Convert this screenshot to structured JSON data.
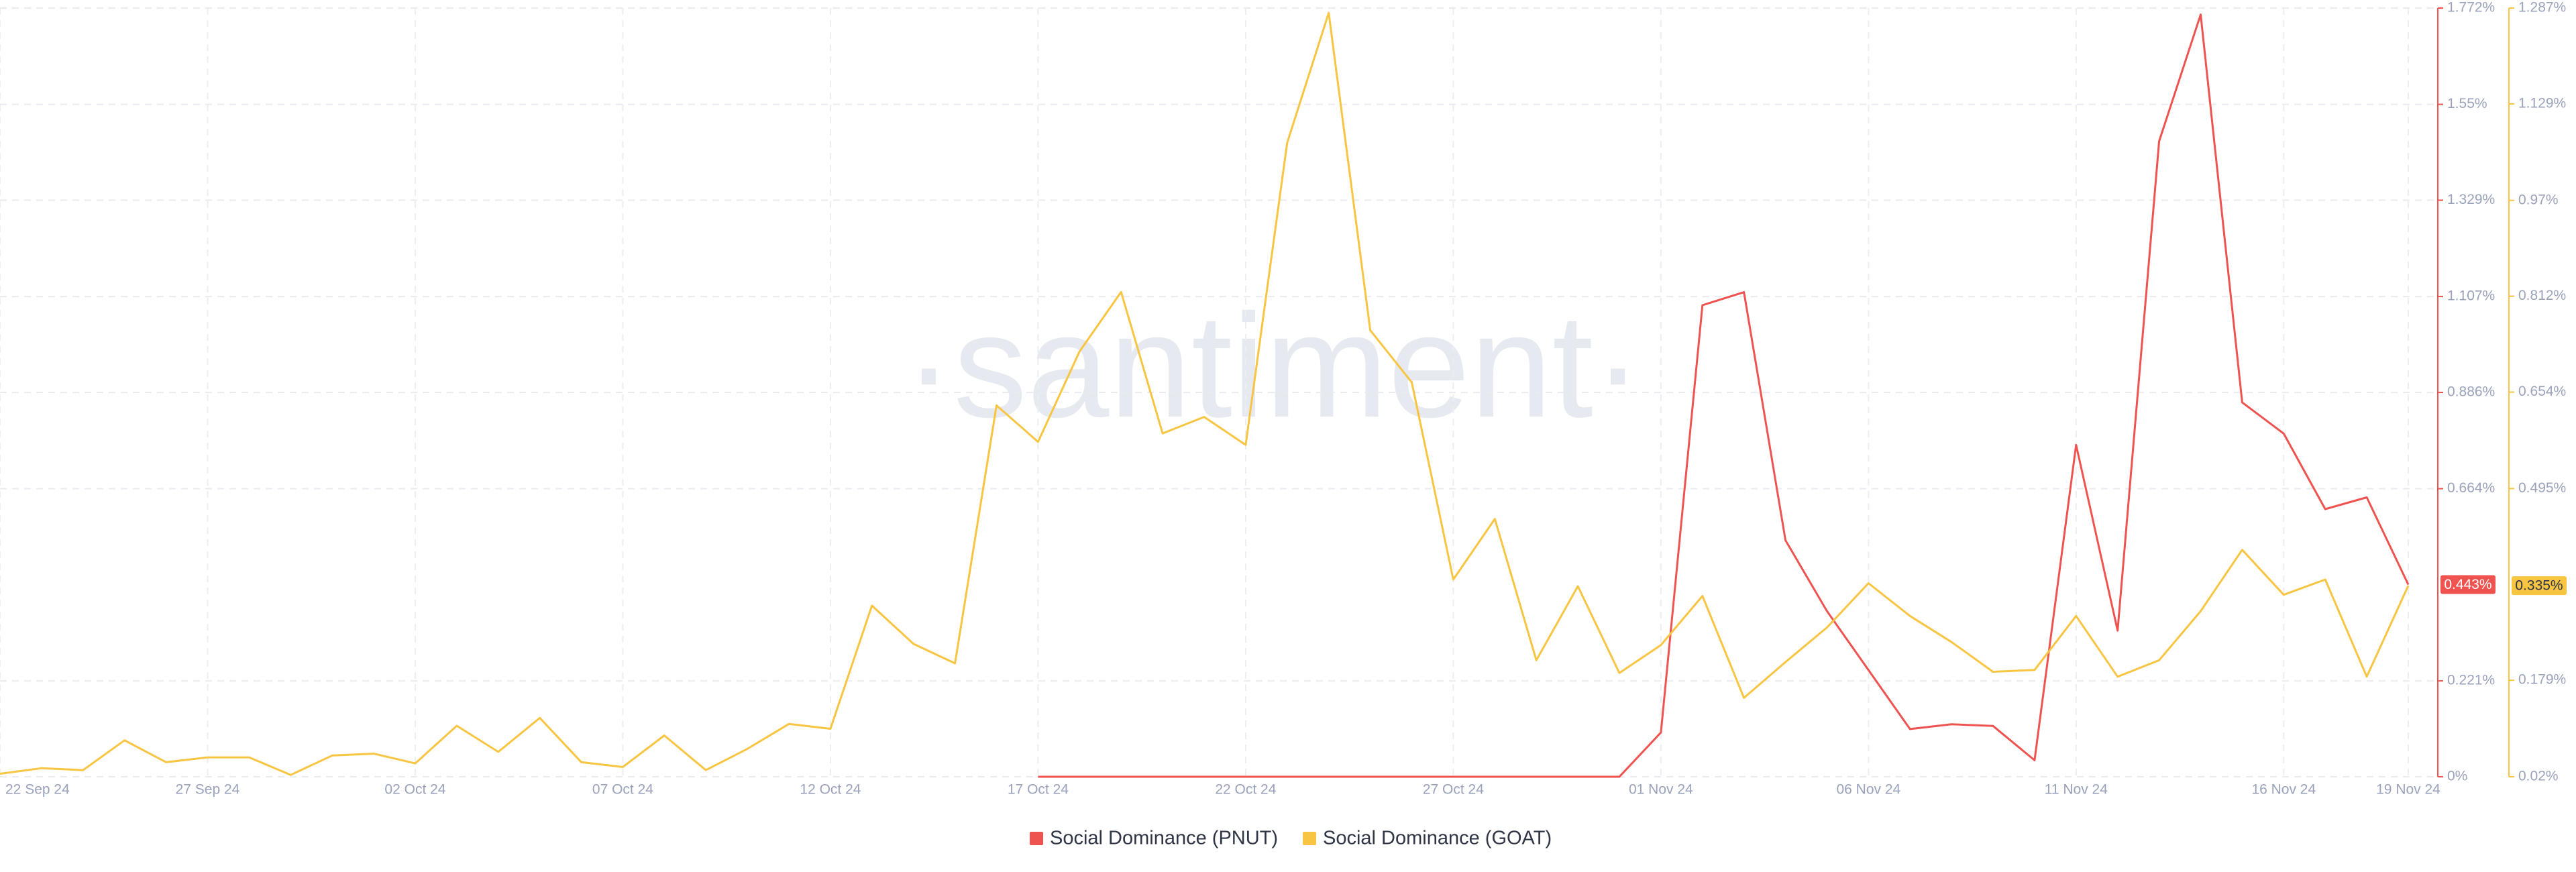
{
  "chart_data": {
    "type": "line",
    "watermark": "·santiment·",
    "categories": [
      "22 Sep 24",
      null,
      null,
      null,
      null,
      "27 Sep 24",
      null,
      null,
      null,
      null,
      "02 Oct 24",
      null,
      null,
      null,
      null,
      "07 Oct 24",
      null,
      null,
      null,
      null,
      "12 Oct 24",
      null,
      null,
      null,
      null,
      "17 Oct 24",
      null,
      null,
      null,
      null,
      "22 Oct 24",
      null,
      null,
      null,
      null,
      "27 Oct 24",
      null,
      null,
      null,
      null,
      "01 Nov 24",
      null,
      null,
      null,
      null,
      "06 Nov 24",
      null,
      null,
      null,
      null,
      "11 Nov 24",
      null,
      null,
      null,
      null,
      "16 Nov 24",
      null,
      null,
      "19 Nov 24"
    ],
    "series": [
      {
        "name": "Social Dominance (PNUT)",
        "color": "#ef5350",
        "axis": "y",
        "values": [
          null,
          null,
          null,
          null,
          null,
          null,
          null,
          null,
          null,
          null,
          null,
          null,
          null,
          null,
          null,
          null,
          null,
          null,
          null,
          null,
          null,
          null,
          null,
          null,
          null,
          0,
          0,
          0,
          0,
          0,
          0,
          0,
          0,
          0,
          0,
          0,
          0,
          0,
          0,
          0,
          0.102,
          1.087,
          1.117,
          0.545,
          0.382,
          0.246,
          0.11,
          0.121,
          0.117,
          0.038,
          0.765,
          0.337,
          1.465,
          1.757,
          0.863,
          0.791,
          0.617,
          0.644,
          0.443
        ],
        "value_labels": [
          null,
          null,
          null,
          null,
          null,
          null,
          null,
          null,
          null,
          null,
          null,
          null,
          null,
          null,
          null,
          null,
          null,
          null,
          null,
          null,
          null,
          null,
          null,
          null,
          null,
          null,
          null,
          null,
          null,
          null,
          null,
          null,
          null,
          null,
          null,
          null,
          null,
          null,
          null,
          null,
          null,
          null,
          null,
          null,
          null,
          null,
          null,
          null,
          null,
          null,
          null,
          null,
          null,
          null,
          null,
          null,
          null,
          null,
          "0.443%"
        ]
      },
      {
        "name": "Social Dominance (GOAT)",
        "color": "#f7c542",
        "axis": "y2",
        "values": [
          0.025,
          0.034,
          0.031,
          0.08,
          0.044,
          0.052,
          0.052,
          0.023,
          0.055,
          0.058,
          0.042,
          0.104,
          0.061,
          0.117,
          0.044,
          0.036,
          0.088,
          0.031,
          0.066,
          0.107,
          0.099,
          0.302,
          0.239,
          0.207,
          0.632,
          0.572,
          0.721,
          0.819,
          0.586,
          0.613,
          0.567,
          1.065,
          1.279,
          0.756,
          0.67,
          0.345,
          0.445,
          0.212,
          0.334,
          0.191,
          0.237,
          0.318,
          0.15,
          0.209,
          0.266,
          0.339,
          0.285,
          0.242,
          0.193,
          0.196,
          0.285,
          0.185,
          0.212,
          0.293,
          0.394,
          0.32,
          0.345,
          0.185,
          0.335
        ],
        "value_labels": [
          null,
          null,
          null,
          null,
          null,
          null,
          null,
          null,
          null,
          null,
          null,
          null,
          null,
          null,
          null,
          null,
          null,
          null,
          null,
          null,
          null,
          null,
          null,
          null,
          null,
          null,
          null,
          null,
          null,
          null,
          null,
          null,
          null,
          null,
          null,
          null,
          null,
          null,
          null,
          null,
          null,
          null,
          null,
          null,
          null,
          null,
          null,
          null,
          null,
          null,
          null,
          null,
          null,
          null,
          null,
          null,
          null,
          null,
          "0.335%"
        ]
      }
    ],
    "ylim": [
      0,
      1.772
    ],
    "yticks": [
      {
        "value": 0,
        "label": "0%"
      },
      {
        "value": 0.221,
        "label": "0.221%"
      },
      {
        "value": 0.664,
        "label": "0.664%"
      },
      {
        "value": 0.886,
        "label": "0.886%"
      },
      {
        "value": 1.107,
        "label": "1.107%"
      },
      {
        "value": 1.329,
        "label": "1.329%"
      },
      {
        "value": 1.55,
        "label": "1.55%"
      },
      {
        "value": 1.772,
        "label": "1.772%"
      }
    ],
    "y2lim": [
      0.02,
      1.287
    ],
    "y2ticks": [
      {
        "value": 0.02,
        "label": "0.02%"
      },
      {
        "value": 0.179,
        "label": "0.179%"
      },
      {
        "value": 0.495,
        "label": "0.495%"
      },
      {
        "value": 0.654,
        "label": "0.654%"
      },
      {
        "value": 0.812,
        "label": "0.812%"
      },
      {
        "value": 0.97,
        "label": "0.97%"
      },
      {
        "value": 1.129,
        "label": "1.129%"
      },
      {
        "value": 1.287,
        "label": "1.287%"
      }
    ],
    "grid": true,
    "legend": "bottom"
  }
}
